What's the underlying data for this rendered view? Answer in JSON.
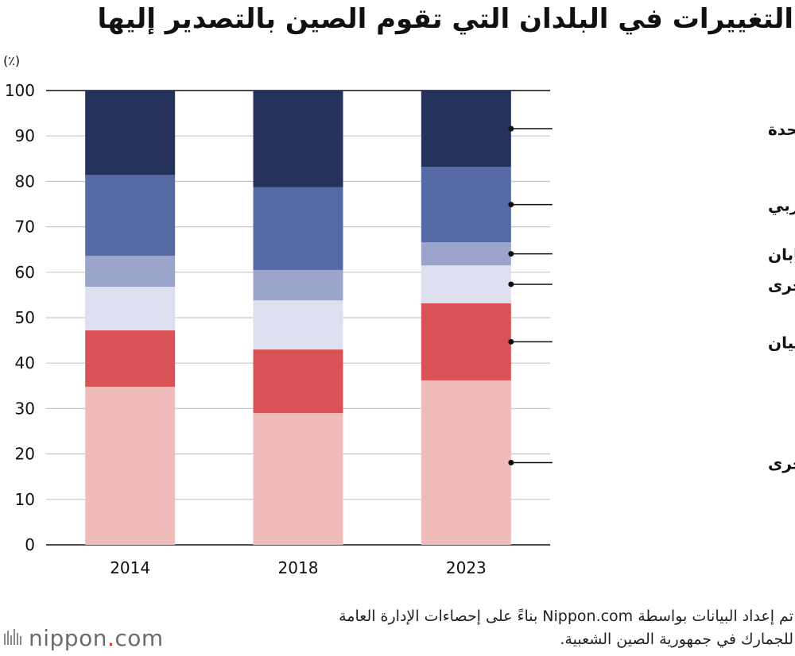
{
  "chart_data": {
    "type": "bar",
    "stacked": true,
    "title": "التغييرات في البلدان  التي تقوم الصين بالتصدير إليها",
    "unit_label": "(٪)",
    "xlabel": "",
    "ylabel": "(٪)",
    "ylim": [
      0,
      100
    ],
    "yticks": [
      0,
      10,
      20,
      30,
      40,
      50,
      60,
      70,
      80,
      90,
      100
    ],
    "categories": [
      "2014",
      "2018",
      "2023"
    ],
    "grid": true,
    "legend_position": "right",
    "series": [
      {
        "name": "الاقتصادات النامية الأخرى",
        "color": "#efbbbb",
        "values": [
          34.8,
          29.0,
          36.2
        ]
      },
      {
        "name": "آسيان",
        "color": "#d95356",
        "values": [
          12.4,
          14.0,
          17.0
        ]
      },
      {
        "name": "الاقتصادات المتقدمة الأخرى",
        "color": "#dde1ef",
        "values": [
          9.6,
          10.8,
          8.3
        ]
      },
      {
        "name": "اليابان",
        "color": "#9ba5cb",
        "values": [
          6.8,
          6.7,
          5.1
        ]
      },
      {
        "name": "الاتحاد الأوربي",
        "color": "#566ba5",
        "values": [
          17.8,
          18.2,
          16.6
        ]
      },
      {
        "name": "الولايات المتحدة",
        "color": "#25325b",
        "values": [
          18.6,
          21.3,
          16.8
        ]
      }
    ]
  },
  "source": {
    "line1": "تم إعداد البيانات بواسطة Nippon.com بناءً على  إحصاءات الإدارة العامة",
    "line2": "للجمارك في جمهورية الصين الشعبية."
  },
  "logo": {
    "name": "nippon",
    "suffix": "com"
  }
}
